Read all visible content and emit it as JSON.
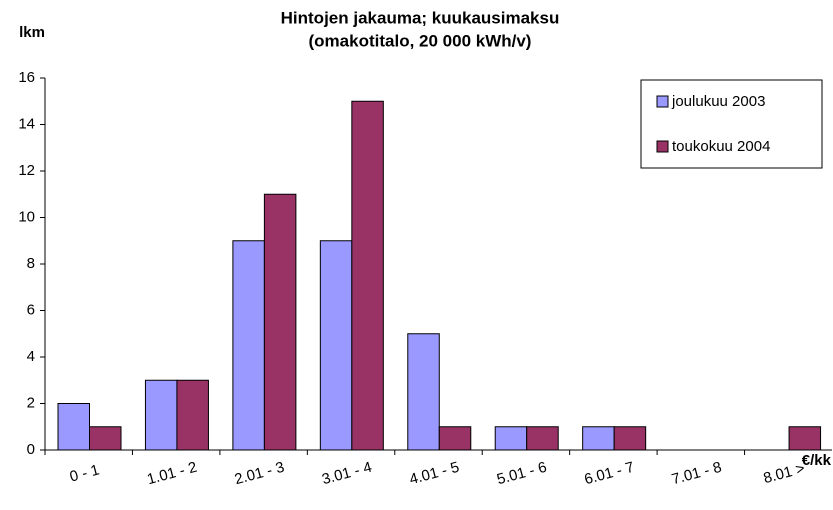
{
  "chart_data": {
    "type": "bar",
    "title": [
      "Hintojen jakauma; kuukausimaksu",
      "(omakotitalo, 20 000 kWh/v)"
    ],
    "y_label": "lkm",
    "x_label": "€/kk",
    "categories": [
      "0 - 1",
      "1.01 - 2",
      "2.01 - 3",
      "3.01 - 4",
      "4.01 - 5",
      "5.01 - 6",
      "6.01 - 7",
      "7.01 - 8",
      "8.01 >"
    ],
    "series": [
      {
        "name": "joulukuu 2003",
        "color": "#9999ff",
        "values": [
          2,
          3,
          9,
          9,
          5,
          1,
          1,
          0,
          0
        ]
      },
      {
        "name": "toukokuu 2004",
        "color": "#993366",
        "values": [
          1,
          3,
          11,
          15,
          1,
          1,
          1,
          0,
          1
        ]
      }
    ],
    "ylim": [
      0,
      16
    ],
    "yticks": [
      0,
      2,
      4,
      6,
      8,
      10,
      12,
      14,
      16
    ],
    "grid": false,
    "legend": "top-right"
  }
}
